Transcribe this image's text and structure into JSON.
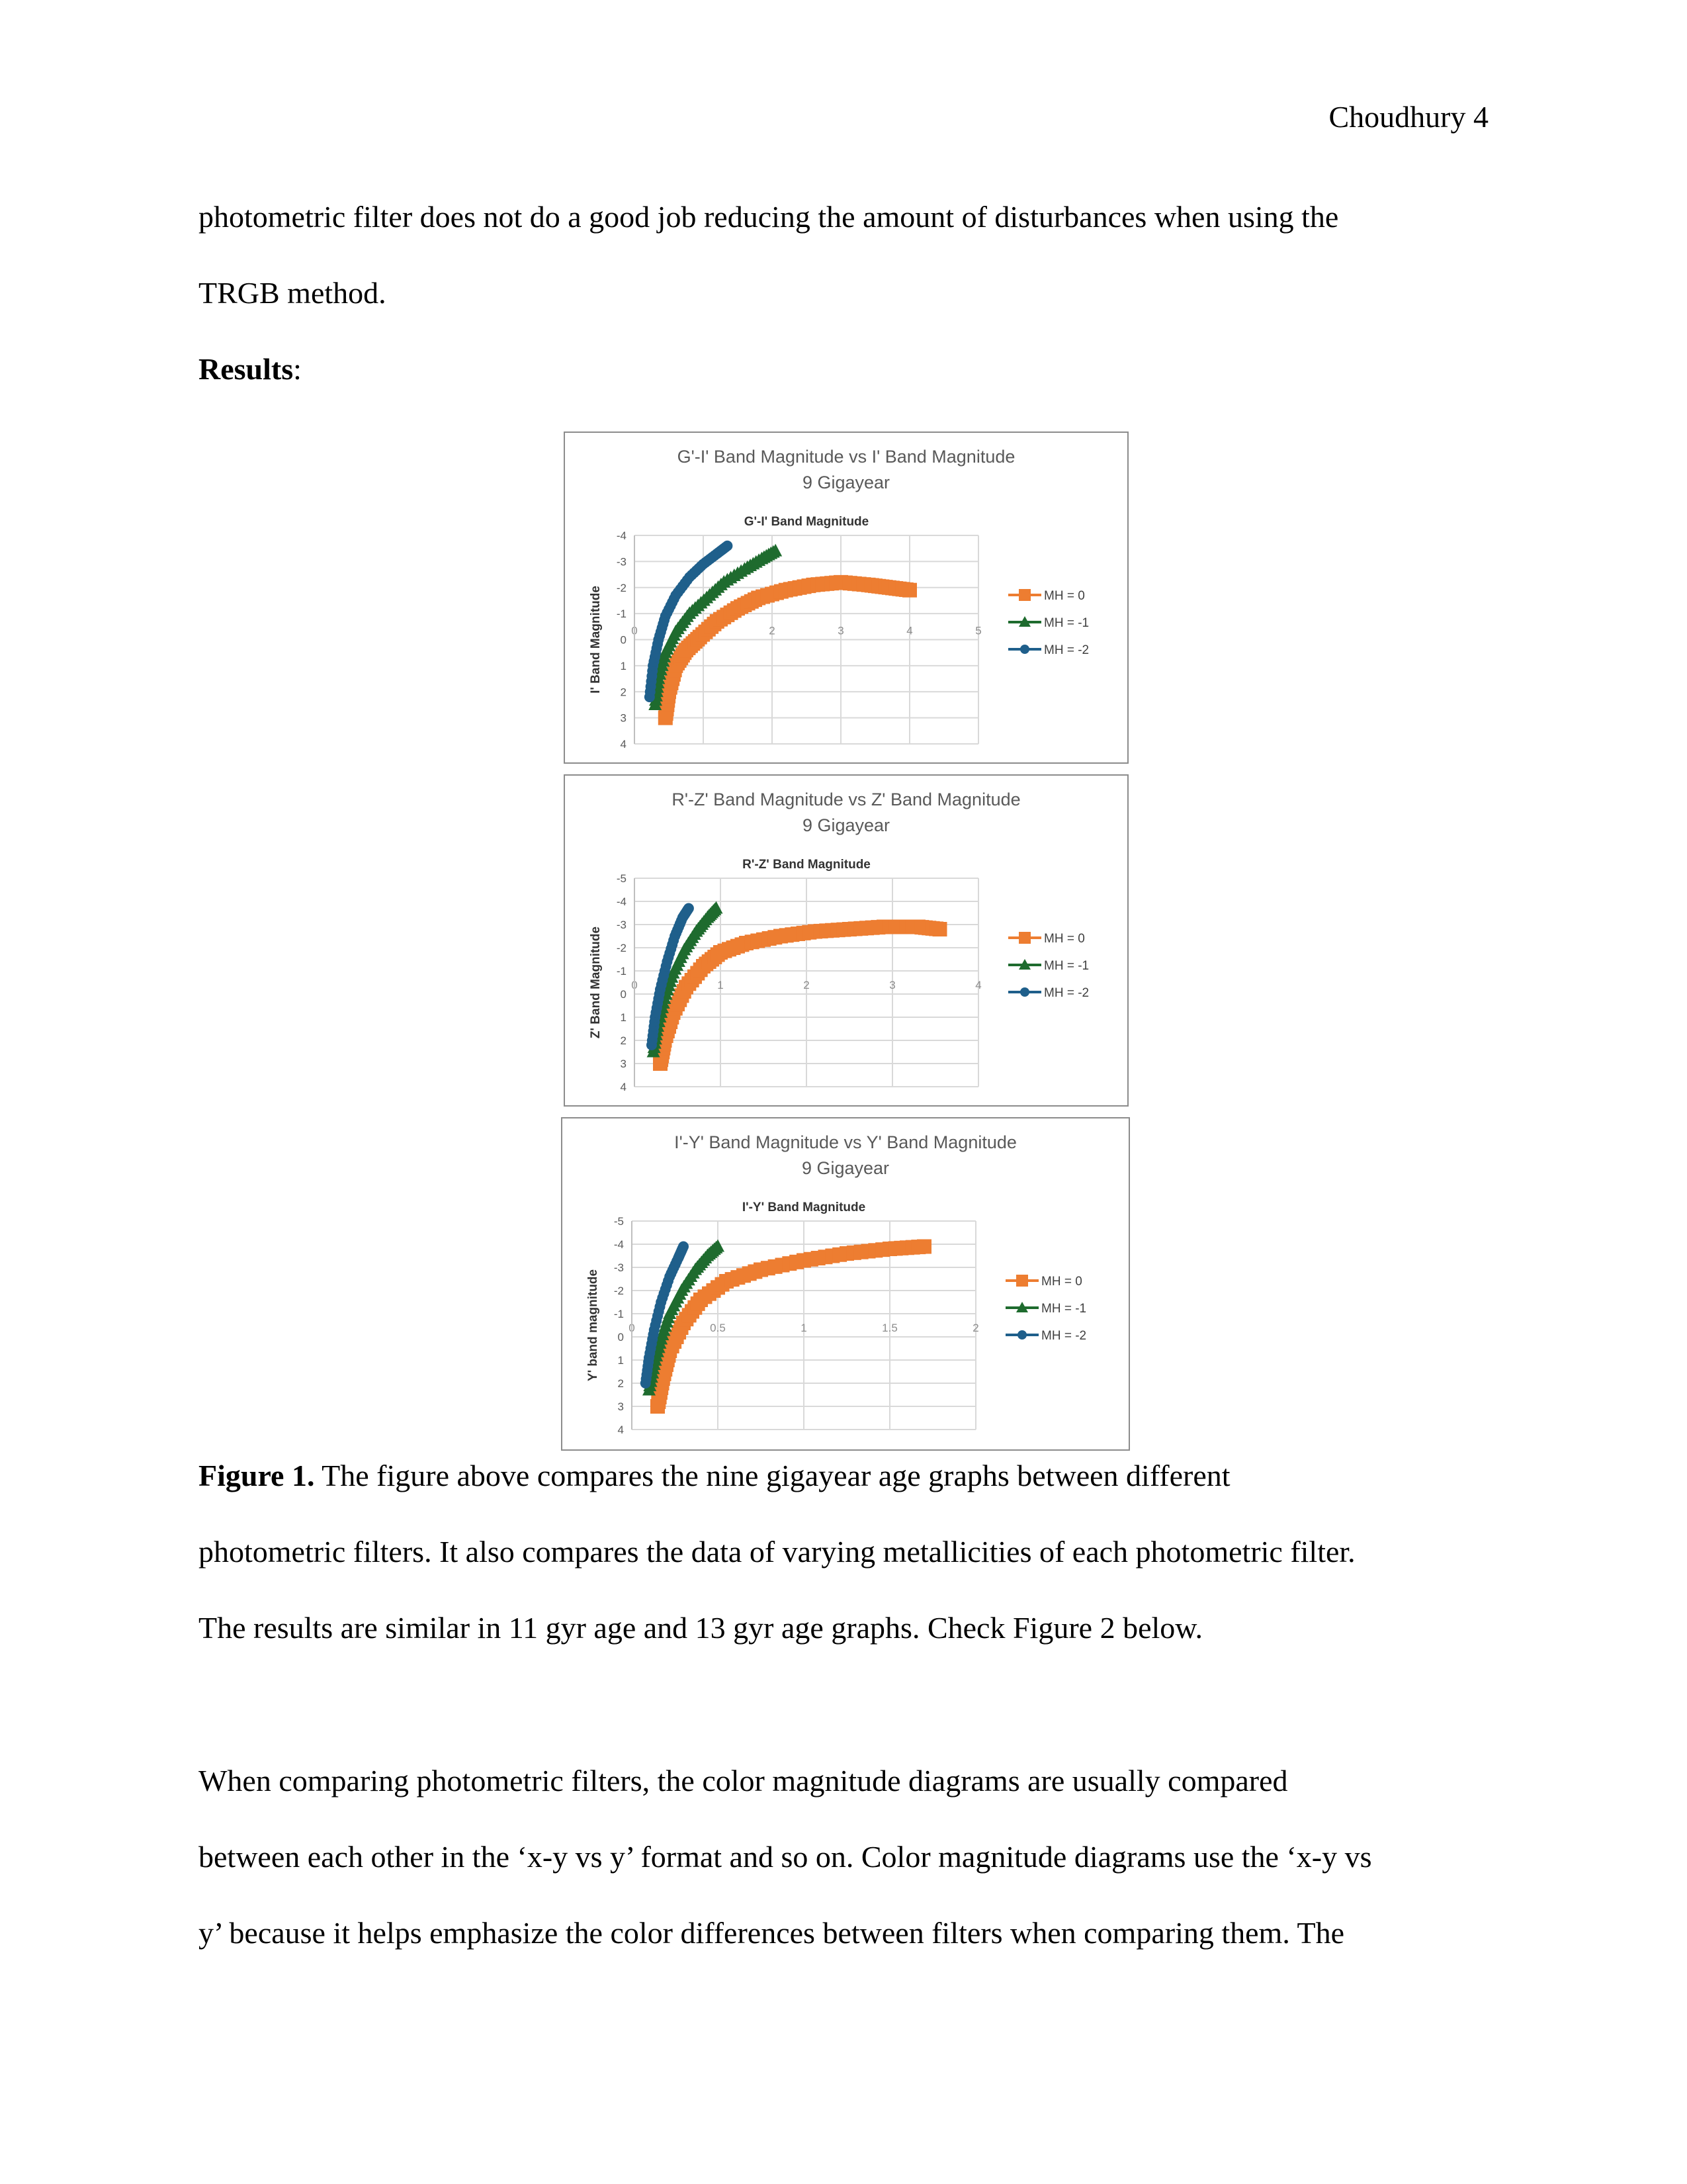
{
  "header": {
    "page_label": "Choudhury 4"
  },
  "paragraphs_top": [
    "photometric filter does not do a good job reducing the amount of disturbances when using the",
    "TRGB method."
  ],
  "results_heading": {
    "bold": "Results",
    "rest": ":"
  },
  "chart_data": [
    {
      "type": "scatter",
      "title": "G'-I' Band Magnitude vs I' Band Magnitude",
      "subtitle": "9 Gigayear",
      "xlabel": "G'-I' Band Magnitude",
      "ylabel": "I' Band Magnitude",
      "xlim": [
        0,
        5
      ],
      "ylim": [
        -4,
        4
      ],
      "y_inverted": true,
      "xticks": [
        "0",
        "1",
        "2",
        "3",
        "4",
        "5"
      ],
      "yticks": [
        "-4",
        "-3",
        "-2",
        "-1",
        "0",
        "1",
        "2",
        "3",
        "4"
      ],
      "legend_position": "right",
      "series": [
        {
          "name": "MH = 0",
          "color": "#ED7D31",
          "marker": "square",
          "x": [
            0.45,
            0.5,
            0.6,
            0.75,
            0.95,
            1.2,
            1.5,
            1.8,
            2.2,
            2.6,
            3.0,
            3.4,
            3.7,
            4.0
          ],
          "y": [
            3.0,
            2.0,
            1.0,
            0.4,
            -0.1,
            -0.7,
            -1.2,
            -1.6,
            -1.9,
            -2.1,
            -2.2,
            -2.1,
            -2.0,
            -1.9
          ]
        },
        {
          "name": "MH = -1",
          "color": "#1E6B2E",
          "marker": "triangle",
          "x": [
            0.3,
            0.35,
            0.45,
            0.6,
            0.8,
            1.05,
            1.3,
            1.6,
            1.85,
            2.05
          ],
          "y": [
            2.5,
            1.5,
            0.5,
            -0.3,
            -1.0,
            -1.6,
            -2.2,
            -2.7,
            -3.1,
            -3.4
          ]
        },
        {
          "name": "MH = -2",
          "color": "#1F5F8B",
          "marker": "circle",
          "x": [
            0.22,
            0.27,
            0.35,
            0.45,
            0.6,
            0.8,
            1.0,
            1.2,
            1.35
          ],
          "y": [
            2.2,
            1.0,
            0.0,
            -0.9,
            -1.7,
            -2.4,
            -2.9,
            -3.3,
            -3.6
          ]
        }
      ]
    },
    {
      "type": "scatter",
      "title": "R'-Z' Band Magnitude vs Z' Band Magnitude",
      "subtitle": "9 Gigayear",
      "xlabel": "R'-Z' Band Magnitude",
      "ylabel": "Z' Band Magnitude",
      "xlim": [
        0,
        4
      ],
      "ylim": [
        -5,
        4
      ],
      "y_inverted": true,
      "xticks": [
        "0",
        "1",
        "2",
        "3",
        "4"
      ],
      "yticks": [
        "-5",
        "-4",
        "-3",
        "-2",
        "-1",
        "0",
        "1",
        "2",
        "3",
        "4"
      ],
      "legend_position": "right",
      "series": [
        {
          "name": "MH = 0",
          "color": "#ED7D31",
          "marker": "square",
          "x": [
            0.3,
            0.35,
            0.45,
            0.6,
            0.8,
            1.0,
            1.3,
            1.7,
            2.1,
            2.5,
            2.9,
            3.3,
            3.55
          ],
          "y": [
            3.0,
            2.0,
            0.8,
            -0.3,
            -1.2,
            -1.8,
            -2.2,
            -2.5,
            -2.7,
            -2.8,
            -2.9,
            -2.9,
            -2.8
          ]
        },
        {
          "name": "MH = -1",
          "color": "#1E6B2E",
          "marker": "triangle",
          "x": [
            0.22,
            0.27,
            0.35,
            0.45,
            0.58,
            0.72,
            0.85,
            0.95
          ],
          "y": [
            2.5,
            1.4,
            0.2,
            -0.9,
            -1.9,
            -2.7,
            -3.3,
            -3.7
          ]
        },
        {
          "name": "MH = -2",
          "color": "#1F5F8B",
          "marker": "circle",
          "x": [
            0.2,
            0.24,
            0.3,
            0.38,
            0.47,
            0.56,
            0.63
          ],
          "y": [
            2.2,
            1.0,
            -0.2,
            -1.4,
            -2.5,
            -3.3,
            -3.7
          ]
        }
      ]
    },
    {
      "type": "scatter",
      "title": "I'-Y' Band Magnitude vs Y' Band Magnitude",
      "subtitle": "9 Gigayear",
      "xlabel": "I'-Y' Band Magnitude",
      "ylabel": "Y' band magnitude",
      "xlim": [
        0,
        2
      ],
      "ylim": [
        -5,
        4
      ],
      "y_inverted": true,
      "xticks": [
        "0",
        "0.5",
        "1",
        "1.5",
        "2"
      ],
      "yticks": [
        "-5",
        "-4",
        "-3",
        "-2",
        "-1",
        "0",
        "1",
        "2",
        "3",
        "4"
      ],
      "legend_position": "right",
      "series": [
        {
          "name": "MH = 0",
          "color": "#ED7D31",
          "marker": "square",
          "x": [
            0.15,
            0.18,
            0.22,
            0.3,
            0.4,
            0.55,
            0.75,
            1.0,
            1.25,
            1.5,
            1.7
          ],
          "y": [
            3.0,
            1.8,
            0.6,
            -0.6,
            -1.6,
            -2.4,
            -2.9,
            -3.3,
            -3.6,
            -3.8,
            -3.9
          ]
        },
        {
          "name": "MH = -1",
          "color": "#1E6B2E",
          "marker": "triangle",
          "x": [
            0.1,
            0.13,
            0.17,
            0.22,
            0.29,
            0.37,
            0.44,
            0.5
          ],
          "y": [
            2.3,
            1.2,
            0.1,
            -1.0,
            -2.0,
            -2.9,
            -3.5,
            -3.9
          ]
        },
        {
          "name": "MH = -2",
          "color": "#1F5F8B",
          "marker": "circle",
          "x": [
            0.08,
            0.1,
            0.13,
            0.17,
            0.22,
            0.27,
            0.3
          ],
          "y": [
            2.0,
            0.9,
            -0.3,
            -1.5,
            -2.6,
            -3.4,
            -3.9
          ]
        }
      ]
    }
  ],
  "caption": {
    "label": "Figure 1.",
    "line1": " The figure above compares the nine gigayear age graphs between different",
    "line2": "photometric filters. It also compares the data of varying metallicities of each photometric filter.",
    "line3": "The results are similar in 11 gyr age and 13 gyr age graphs. Check Figure 2 below."
  },
  "paragraphs_bottom": [
    "When comparing photometric filters, the color magnitude diagrams are usually compared",
    "between each other in the ‘x-y vs y’ format and so on. Color magnitude diagrams use the ‘x-y vs",
    "y’ because it helps emphasize the color differences between filters when comparing them. The"
  ]
}
